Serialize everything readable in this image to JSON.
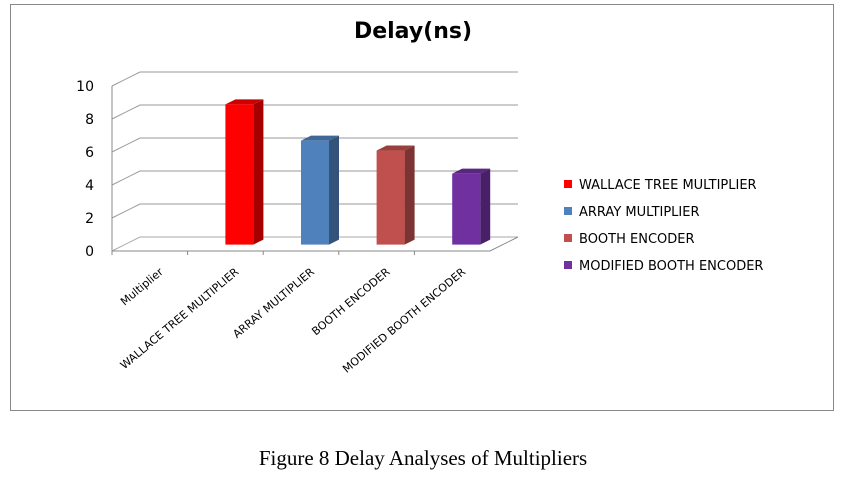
{
  "chart_data": {
    "type": "bar",
    "title": "Delay(ns)",
    "categories": [
      "Multiplier",
      "WALLACE TREE MULTIPLIER",
      "ARRAY MULTIPLIER",
      "BOOTH ENCODER",
      "MODIFIED BOOTH ENCODER"
    ],
    "series": [
      {
        "name": "WALLACE TREE MULTIPLIER",
        "category": "WALLACE TREE MULTIPLIER",
        "value": 8.5,
        "color": "#ff0000"
      },
      {
        "name": "ARRAY MULTIPLIER",
        "category": "ARRAY MULTIPLIER",
        "value": 6.3,
        "color": "#4f81bd"
      },
      {
        "name": "BOOTH ENCODER",
        "category": "BOOTH ENCODER",
        "value": 5.7,
        "color": "#c0504d"
      },
      {
        "name": "MODIFIED BOOTH ENCODER",
        "category": "MODIFIED BOOTH ENCODER",
        "value": 4.3,
        "color": "#7030a0"
      }
    ],
    "yticks": [
      "0",
      "2",
      "4",
      "6",
      "8",
      "10"
    ],
    "ylim": [
      0,
      10
    ],
    "grid": true,
    "legend": "right"
  },
  "caption": "Figure 8 Delay Analyses of Multipliers"
}
